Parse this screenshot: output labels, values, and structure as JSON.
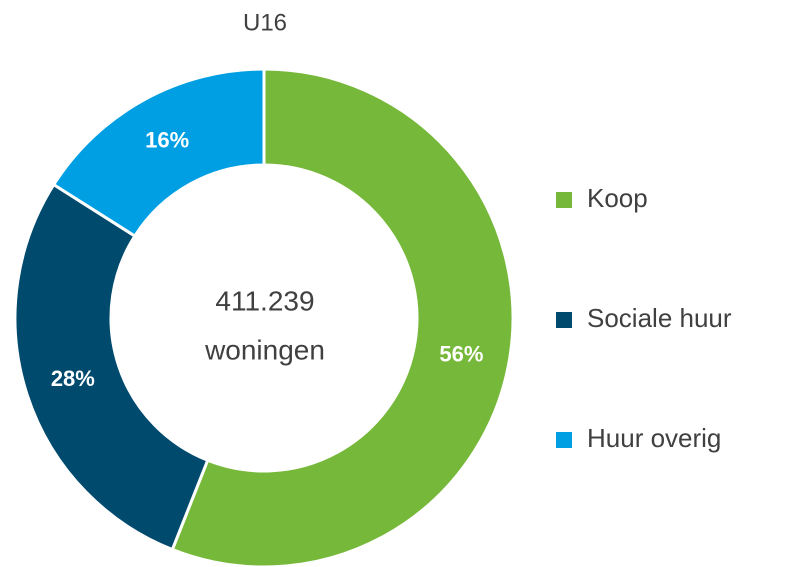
{
  "chart_data": {
    "type": "donut",
    "title": "U16",
    "center_text": [
      "411.239",
      "woningen"
    ],
    "categories": [
      "Koop",
      "Sociale huur",
      "Huur overig"
    ],
    "values": [
      56,
      28,
      16
    ],
    "value_labels": [
      "56%",
      "28%",
      "16%"
    ],
    "colors": [
      "#76b83a",
      "#004a6e",
      "#009fe3"
    ],
    "legend": "right"
  }
}
